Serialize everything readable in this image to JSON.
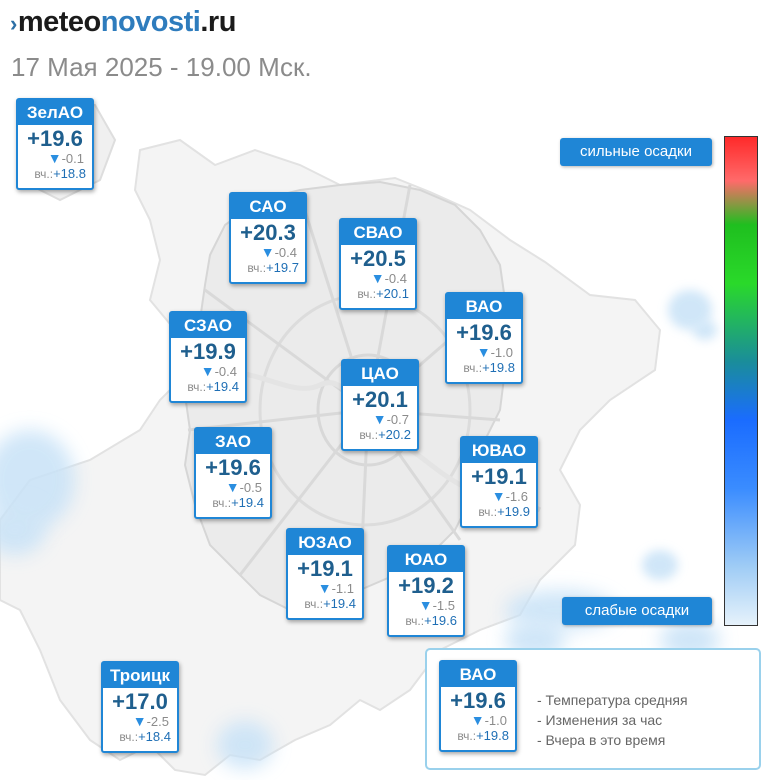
{
  "header": {
    "brand_mark": "›",
    "brand_part1": "meteo",
    "brand_part2": "novosti",
    "brand_part3": ".ru",
    "datetime": "17 Мая 2025 - 19.00 Мск."
  },
  "scale": {
    "top_label": "сильные осадки",
    "bottom_label": "слабые осадки"
  },
  "districts": {
    "zelao": {
      "name": "ЗелАО",
      "temp": "+19.6",
      "change": "-0.1",
      "yesterday_label": "вч.:",
      "yesterday": "+18.8"
    },
    "sao": {
      "name": "САО",
      "temp": "+20.3",
      "change": "-0.4",
      "yesterday_label": "вч.:",
      "yesterday": "+19.7"
    },
    "svao": {
      "name": "СВАО",
      "temp": "+20.5",
      "change": "-0.4",
      "yesterday_label": "вч.:",
      "yesterday": "+20.1"
    },
    "vao": {
      "name": "ВАО",
      "temp": "+19.6",
      "change": "-1.0",
      "yesterday_label": "вч.:",
      "yesterday": "+19.8"
    },
    "szao": {
      "name": "СЗАО",
      "temp": "+19.9",
      "change": "-0.4",
      "yesterday_label": "вч.:",
      "yesterday": "+19.4"
    },
    "cao": {
      "name": "ЦАО",
      "temp": "+20.1",
      "change": "-0.7",
      "yesterday_label": "вч.:",
      "yesterday": "+20.2"
    },
    "zao": {
      "name": "ЗАО",
      "temp": "+19.6",
      "change": "-0.5",
      "yesterday_label": "вч.:",
      "yesterday": "+19.4"
    },
    "yuvao": {
      "name": "ЮВАО",
      "temp": "+19.1",
      "change": "-1.6",
      "yesterday_label": "вч.:",
      "yesterday": "+19.9"
    },
    "yuzao": {
      "name": "ЮЗАО",
      "temp": "+19.1",
      "change": "-1.1",
      "yesterday_label": "вч.:",
      "yesterday": "+19.4"
    },
    "yuao": {
      "name": "ЮАО",
      "temp": "+19.2",
      "change": "-1.5",
      "yesterday_label": "вч.:",
      "yesterday": "+19.6"
    },
    "troick": {
      "name": "Троицк",
      "temp": "+17.0",
      "change": "-2.5",
      "yesterday_label": "вч.:",
      "yesterday": "+18.4"
    }
  },
  "legend": {
    "sample": {
      "name": "ВАО",
      "temp": "+19.6",
      "change": "-1.0",
      "yesterday_label": "вч.:",
      "yesterday": "+19.8"
    },
    "line1": "- Температура средняя",
    "line2": "- Изменения за час",
    "line3": "- Вчера в это время"
  },
  "colors": {
    "card_accent": "#1f86d6",
    "temp_text": "#1f5f8e",
    "down_arrow": "#2a8ee0",
    "precip_light": "#c8e2f7"
  },
  "icons": {
    "change_arrow": "triangle-down-icon",
    "brand_mark": "brand-chevron-icon"
  }
}
